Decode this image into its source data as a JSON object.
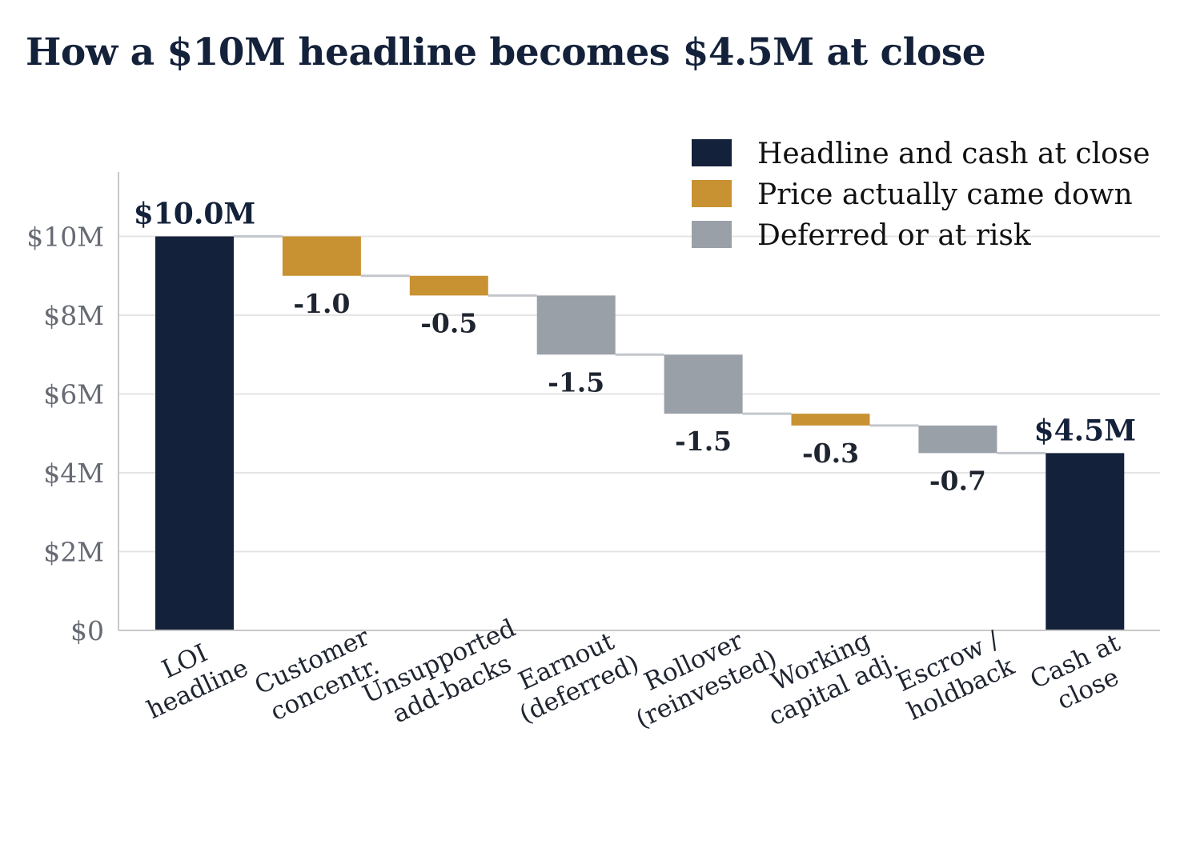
{
  "chart_data": {
    "type": "bar",
    "subtype": "waterfall",
    "title": "How a $10M headline becomes $4.5M at close",
    "ylim": [
      0,
      11.5
    ],
    "yticks": [
      0,
      2,
      4,
      6,
      8,
      10
    ],
    "ytick_labels": [
      "$0",
      "$2M",
      "$4M",
      "$6M",
      "$8M",
      "$10M"
    ],
    "grid": "horizontal",
    "legend_position": "top-right",
    "colors": {
      "total": "#14213a",
      "reduction": "#c89232",
      "deferred": "#9aa0a8",
      "connector": "#c3c6cc",
      "grid": "#e4e4e4",
      "axis": "#c8c8c8"
    },
    "legend": [
      {
        "label": "Headline and cash at close",
        "kind": "total"
      },
      {
        "label": "Price actually came down",
        "kind": "reduction"
      },
      {
        "label": "Deferred or at risk",
        "kind": "deferred"
      }
    ],
    "steps": [
      {
        "category": "LOI\nheadline",
        "kind": "total",
        "value": 10.0,
        "label": "$10.0M"
      },
      {
        "category": "Customer\nconcentr.",
        "kind": "reduction",
        "value": -1.0,
        "label": "-1.0"
      },
      {
        "category": "Unsupported\nadd-backs",
        "kind": "reduction",
        "value": -0.5,
        "label": "-0.5"
      },
      {
        "category": "Earnout\n(deferred)",
        "kind": "deferred",
        "value": -1.5,
        "label": "-1.5"
      },
      {
        "category": "Rollover\n(reinvested)",
        "kind": "deferred",
        "value": -1.5,
        "label": "-1.5"
      },
      {
        "category": "Working\ncapital adj.",
        "kind": "reduction",
        "value": -0.3,
        "label": "-0.3"
      },
      {
        "category": "Escrow /\nholdback",
        "kind": "deferred",
        "value": -0.7,
        "label": "-0.7"
      },
      {
        "category": "Cash at\nclose",
        "kind": "total",
        "value": 4.5,
        "label": "$4.5M"
      }
    ]
  }
}
